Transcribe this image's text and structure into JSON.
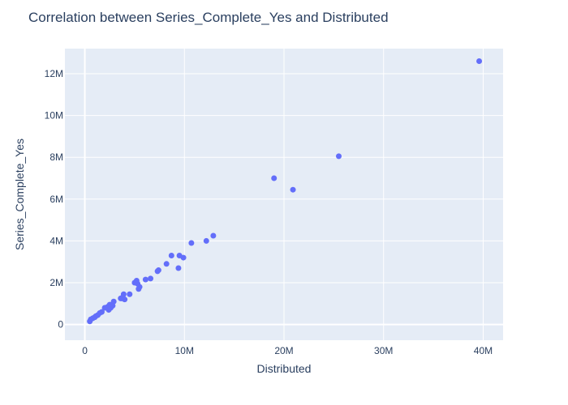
{
  "chart_data": {
    "type": "scatter",
    "title": "Correlation between Series_Complete_Yes and Distributed",
    "xlabel": "Distributed",
    "ylabel": "Series_Complete_Yes",
    "xlim": [
      -2000000,
      42000000
    ],
    "ylim": [
      -750000,
      13200000
    ],
    "x_ticks": [
      0,
      10000000,
      20000000,
      30000000,
      40000000
    ],
    "x_tick_labels": [
      "0",
      "10M",
      "20M",
      "30M",
      "40M"
    ],
    "y_ticks": [
      0,
      2000000,
      4000000,
      6000000,
      8000000,
      10000000,
      12000000
    ],
    "y_tick_labels": [
      "0",
      "2M",
      "4M",
      "6M",
      "8M",
      "10M",
      "12M"
    ],
    "grid": true,
    "marker_color": "#636efa",
    "plot_bg": "#e5ecf6",
    "x": [
      39600000,
      25500000,
      20900000,
      19000000,
      12900000,
      12200000,
      10700000,
      9900000,
      9500000,
      9400000,
      8700000,
      8200000,
      7400000,
      7300000,
      6600000,
      6100000,
      5500000,
      5400000,
      5300000,
      5200000,
      5000000,
      4500000,
      4000000,
      3900000,
      3800000,
      3700000,
      3600000,
      2900000,
      2800000,
      2600000,
      2500000,
      2400000,
      2300000,
      2000000,
      1700000,
      1500000,
      1300000,
      1100000,
      1000000,
      800000,
      600000,
      500000
    ],
    "y": [
      12600000,
      8050000,
      6450000,
      7000000,
      4250000,
      4000000,
      3900000,
      3200000,
      3300000,
      2700000,
      3300000,
      2900000,
      2600000,
      2550000,
      2200000,
      2150000,
      1800000,
      1700000,
      1950000,
      2100000,
      2000000,
      1450000,
      1200000,
      1450000,
      1300000,
      1250000,
      1250000,
      1100000,
      900000,
      800000,
      950000,
      700000,
      850000,
      800000,
      600000,
      550000,
      450000,
      400000,
      350000,
      300000,
      250000,
      150000
    ]
  }
}
